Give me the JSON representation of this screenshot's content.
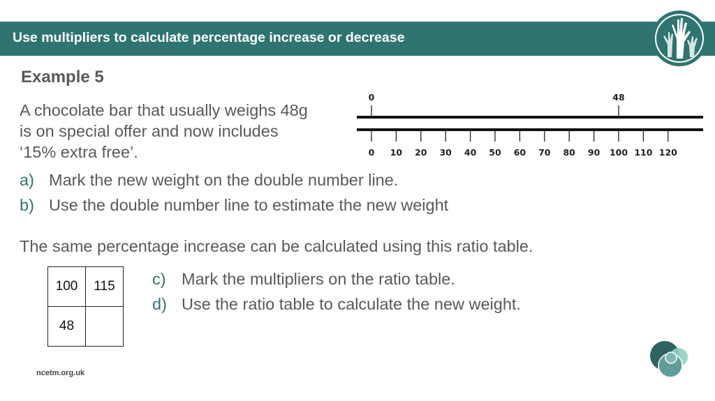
{
  "header": {
    "title": "Use multipliers to calculate percentage increase or decrease"
  },
  "example": {
    "title": "Example 5",
    "intro_lines": [
      "A chocolate bar that usually weighs 48g",
      "is on special offer and now includes",
      "‘15% extra free’."
    ]
  },
  "tasks": [
    {
      "letter": "a)",
      "text": "Mark the new weight on the double number line."
    },
    {
      "letter": "b)",
      "text": "Use the double number line to estimate the new weight"
    }
  ],
  "bridge_text": "The same percentage increase can be calculated using this ratio table.",
  "tasks_ratio": [
    {
      "letter": "c)",
      "text": "Mark the multipliers on the ratio table."
    },
    {
      "letter": "d)",
      "text": "Use the ratio table to calculate the new weight."
    }
  ],
  "number_line": {
    "top_labels": [
      {
        "label": "0",
        "value": 0
      },
      {
        "label": "48",
        "value": 100
      }
    ],
    "bottom_ticks": [
      "0",
      "10",
      "20",
      "30",
      "40",
      "50",
      "60",
      "70",
      "80",
      "90",
      "100",
      "110",
      "120"
    ]
  },
  "ratio_table": {
    "rows": [
      [
        "100",
        "115"
      ],
      [
        "48",
        ""
      ]
    ]
  },
  "footer": {
    "url": "ncetm.org.uk"
  },
  "colors": {
    "brand": "#2f7470",
    "text": "#595959"
  },
  "icons": {
    "header_logo": "raised-hands-logo-icon",
    "footer_logo": "overlapping-circles-logo-icon"
  }
}
